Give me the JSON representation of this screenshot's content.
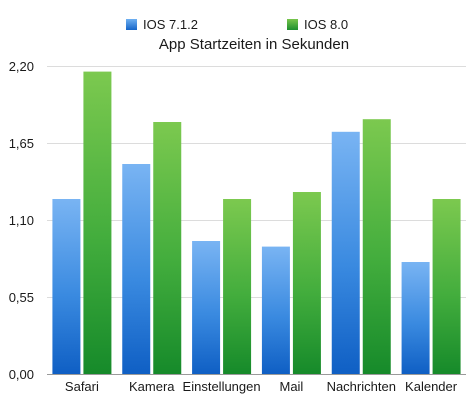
{
  "chart_data": {
    "type": "bar",
    "title": "App Startzeiten in Sekunden",
    "xlabel": "",
    "ylabel": "",
    "categories": [
      "Safari",
      "Kamera",
      "Einstellungen",
      "Mail",
      "Nachrichten",
      "Kalender"
    ],
    "series": [
      {
        "name": "IOS 7.1.2",
        "values": [
          1.25,
          1.5,
          0.95,
          0.91,
          1.73,
          0.8
        ],
        "color": "#2f7fd8"
      },
      {
        "name": "IOS 8.0",
        "values": [
          2.16,
          1.8,
          1.25,
          1.3,
          1.82,
          1.25
        ],
        "color": "#3ca73a"
      }
    ],
    "ylim": [
      0,
      2.2
    ],
    "yticks": [
      "0,00",
      "0,55",
      "1,10",
      "1,65",
      "2,20"
    ],
    "ytick_values": [
      0,
      0.55,
      1.1,
      1.65,
      2.2
    ],
    "grid": true,
    "legend_position": "top"
  }
}
